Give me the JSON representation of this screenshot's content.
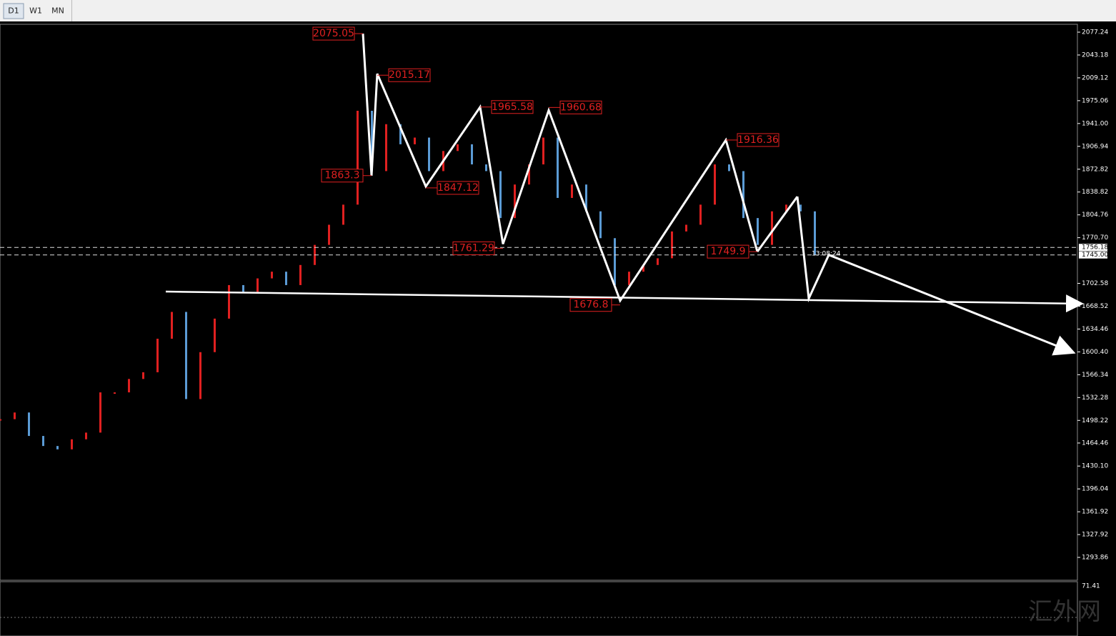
{
  "toolbar": {
    "buttons": [
      "D1",
      "W1",
      "MN"
    ],
    "active": "D1"
  },
  "chart_data": {
    "type": "line",
    "price_color_up": "#e02020",
    "price_color_down": "#5b9bd5",
    "x": [
      0,
      5,
      10,
      15,
      20,
      25,
      30,
      35,
      40,
      45,
      50,
      55,
      60,
      65,
      70,
      75,
      80,
      85,
      90,
      95,
      100,
      105,
      110,
      115,
      120,
      125,
      130,
      135,
      140,
      145,
      150,
      155,
      160,
      165,
      170,
      175,
      180,
      185,
      190,
      195,
      200,
      205,
      210,
      215,
      220,
      225,
      230,
      235,
      240,
      245,
      250,
      255,
      260,
      265,
      270,
      275,
      280,
      285
    ],
    "values": [
      1500,
      1510,
      1475,
      1460,
      1455,
      1470,
      1480,
      1540,
      1540,
      1560,
      1570,
      1620,
      1660,
      1530,
      1600,
      1650,
      1700,
      1690,
      1710,
      1720,
      1700,
      1730,
      1760,
      1790,
      1820,
      1960,
      1870,
      1940,
      1910,
      1920,
      1870,
      1900,
      1910,
      1880,
      1870,
      1800,
      1850,
      1880,
      1920,
      1830,
      1850,
      1810,
      1770,
      1700,
      1720,
      1730,
      1740,
      1780,
      1790,
      1820,
      1880,
      1870,
      1800,
      1760,
      1810,
      1820,
      1810,
      1745
    ],
    "xlim": [
      0,
      377
    ],
    "ylim": [
      1261.9,
      2087.9
    ],
    "yticks": [
      2077.24,
      2043.18,
      2009.12,
      1975.06,
      {
        "value": 1941.0,
        "label": "1941.00"
      },
      1906.94,
      1872.82,
      1838.82,
      1804.76,
      {
        "value": 1770.7,
        "label": "1770.70"
      },
      1702.58,
      1668.52,
      1634.46,
      {
        "value": 1600.4,
        "label": "1600.40"
      },
      1566.34,
      1532.28,
      1498.22,
      1464.46,
      {
        "value": 1430.1,
        "label": "1430.10"
      },
      1396.04,
      1361.92,
      1327.92,
      1293.86
    ],
    "pivots": {
      "x": [
        127,
        130,
        132,
        149,
        168,
        176,
        192,
        217,
        254,
        265
      ],
      "values": [
        2075.05,
        1863.3,
        2015.17,
        1847.12,
        1965.58,
        1761.29,
        1960.68,
        1676.8,
        1916.36,
        1749.9
      ]
    },
    "projection": {
      "x": [
        279,
        283,
        290,
        375
      ],
      "values": [
        1832,
        1680,
        1745,
        1600.4
      ]
    },
    "support": {
      "x": [
        58,
        378
      ],
      "values": [
        1690.3,
        1672.3
      ]
    },
    "levels": [
      1756.18,
      {
        "value": 1745.0,
        "label": "1745.00"
      }
    ],
    "time_label": "13:08:24",
    "indicator": {
      "label": "71.41"
    },
    "watermark": "汇外网"
  }
}
